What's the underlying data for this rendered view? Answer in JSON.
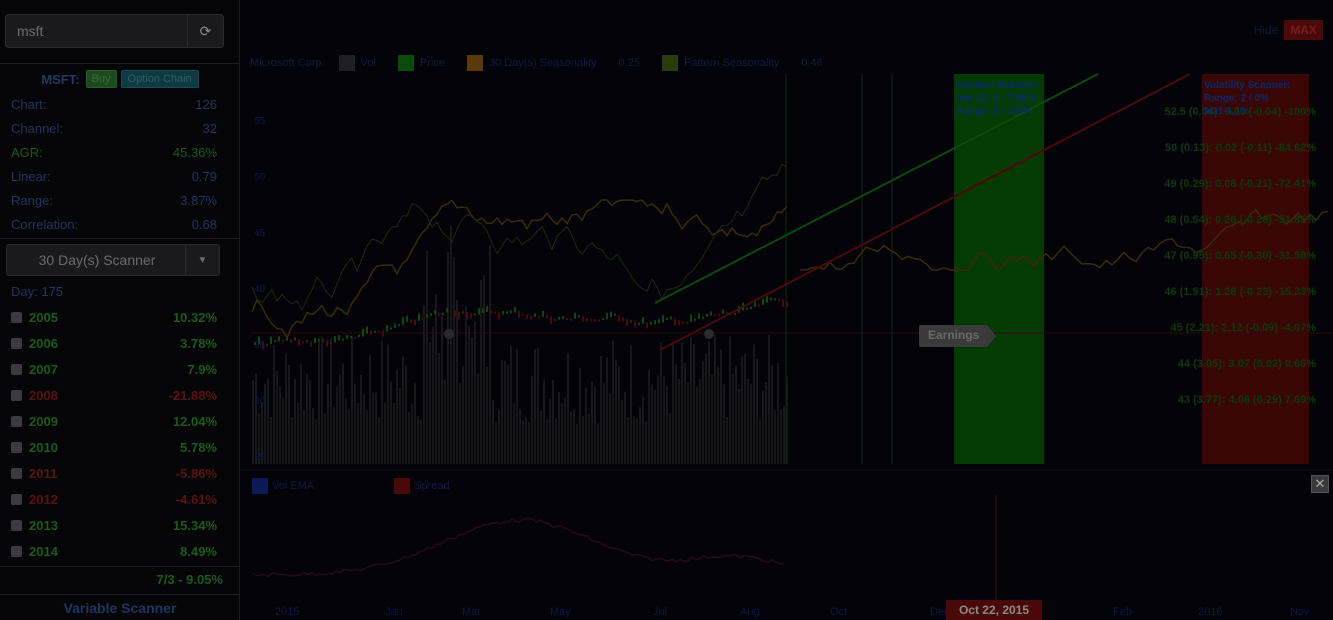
{
  "sidebar": {
    "search_value": "msft",
    "ticker": "MSFT:",
    "buy_label": "Buy",
    "option_chain_label": "Option Chain",
    "stats": [
      {
        "key": "Chart:",
        "value": "126",
        "highlight": false
      },
      {
        "key": "Channel:",
        "value": "32",
        "highlight": false
      },
      {
        "key": "AGR:",
        "value": "45.36%",
        "highlight": true
      },
      {
        "key": "Linear:",
        "value": "0.79",
        "highlight": false
      },
      {
        "key": "Range:",
        "value": "3.87%",
        "highlight": false
      },
      {
        "key": "Correlation:",
        "value": "0.68",
        "highlight": false
      }
    ],
    "scanner_label": "30 Day(s) Scanner",
    "day_label": "Day: 175",
    "years": [
      {
        "year": "2005",
        "value": "10.32%",
        "positive": true
      },
      {
        "year": "2006",
        "value": "3.78%",
        "positive": true
      },
      {
        "year": "2007",
        "value": "7.9%",
        "positive": true
      },
      {
        "year": "2008",
        "value": "-21.88%",
        "positive": false
      },
      {
        "year": "2009",
        "value": "12.04%",
        "positive": true
      },
      {
        "year": "2010",
        "value": "5.78%",
        "positive": true
      },
      {
        "year": "2011",
        "value": "-5.86%",
        "positive": false
      },
      {
        "year": "2012",
        "value": "-4.61%",
        "positive": false
      },
      {
        "year": "2013",
        "value": "15.34%",
        "positive": true
      },
      {
        "year": "2014",
        "value": "8.49%",
        "positive": true
      }
    ],
    "summary": "7/3 - 9.05%",
    "variable_scanner_label": "Variable Scanner"
  },
  "main": {
    "range_link": "Hide",
    "max_label": "MAX",
    "legend": {
      "symbol_label": "Microsoft Corp.",
      "items": [
        {
          "label": "Vol",
          "color": "#1e1e24"
        },
        {
          "label": "Price",
          "color": "#0a4a0a"
        },
        {
          "label": "30 Day(s) Seasonality",
          "color": "#5a3a0a"
        },
        {
          "label": "0.25",
          "color": ""
        },
        {
          "label": "Pattern Seasonality",
          "color": "#2a3a0a"
        },
        {
          "label": "0.48",
          "color": ""
        }
      ]
    },
    "green_box_text": [
      "Variable Scanner:",
      "Jan 10, 0 - 7.95%",
      "Range: 2 / 100%"
    ],
    "red_box_text": [
      "Volatility Scanner:",
      "Range: 2 / 0%",
      "9/31 4.1%"
    ],
    "price_levels": [
      "52.5 (0.04): 0.00 (-0.04) -100%",
      "50 (0.13): 0.02 (-0.11) -84.62%",
      "49 (0.29): 0.08 (-0.21) -72.41%",
      "48 (0.54): 0.26 (-0.28) -51.85%",
      "47 (0.95): 0.65 (-0.30) -31.58%",
      "46 (1.51): 1.28 (-0.23) -15.23%",
      "45 (2.21): 2.12 (-0.09) -4.07%",
      "44 (3.05): 3.07 (0.02) 0.66%",
      "43 (3.77): 4.06 (0.29) 7.69%"
    ],
    "y_ticks": [
      "55",
      "50",
      "45",
      "40",
      "35",
      "30",
      "25"
    ],
    "earnings_label": "Earnings",
    "lower_legend": [
      {
        "label": "Vol EMA",
        "color": "#0a1a55"
      },
      {
        "label": "Spread",
        "color": "#4a0808"
      }
    ],
    "x_ticks": [
      "2015",
      "Jan",
      "Mar",
      "May",
      "Jul",
      "Aug",
      "Oct",
      "Dec",
      "Feb",
      "2016",
      "Nov"
    ],
    "date_badge": "Oct 22, 2015",
    "close_label": "✕"
  }
}
